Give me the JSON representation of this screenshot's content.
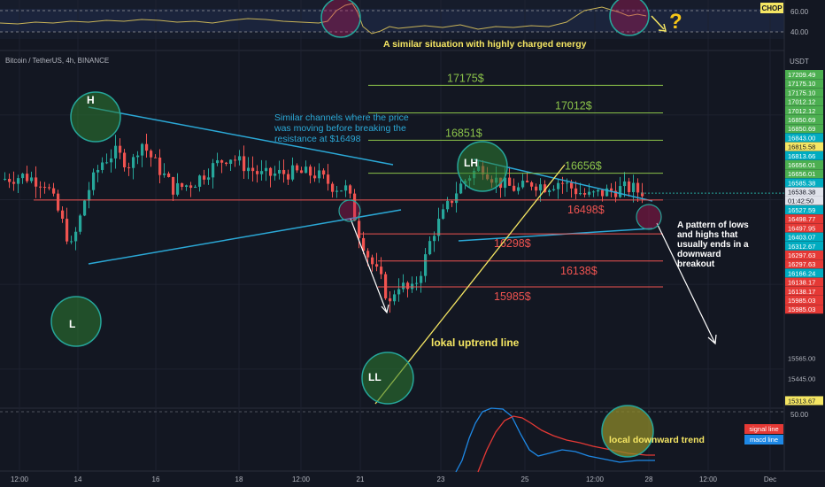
{
  "header": {
    "symbol_title": "Bitcoin / TetherUS, 4h, BINANCE",
    "currency": "USDT"
  },
  "chop_panel": {
    "name": "CHOP",
    "levels": [
      "60.00",
      "40.00"
    ],
    "question_mark": "?",
    "annotation": "A similar situation with highly charged energy"
  },
  "macd_panel": {
    "level": "50.00",
    "legend": [
      {
        "label": "signal line",
        "color": "#e53935"
      },
      {
        "label": "macd line",
        "color": "#1e88e5"
      }
    ],
    "annotation": "local downward trend"
  },
  "pivots": {
    "high": "H",
    "low": "L",
    "lower_high": "LH",
    "lower_low": "LL"
  },
  "annotations": {
    "channels": [
      "Similar channels where the price",
      "was moving before breaking the",
      "resistance at $16498"
    ],
    "pattern": [
      "A pattern of lows",
      "and highs that",
      "usually ends in a",
      "downward",
      "breakout"
    ],
    "uptrend": "lokal uptrend line"
  },
  "levels": {
    "green": [
      {
        "label": "17175$",
        "price": 17175
      },
      {
        "label": "17012$",
        "price": 17012
      },
      {
        "label": "16851$",
        "price": 16851
      },
      {
        "label": "16656$",
        "price": 16656
      }
    ],
    "red": [
      {
        "label": "16498$",
        "price": 16498
      },
      {
        "label": "16298$",
        "price": 16298
      },
      {
        "label": "16138$",
        "price": 16138
      },
      {
        "label": "15985$",
        "price": 15985
      }
    ]
  },
  "colors": {
    "up": "#26a69a",
    "down": "#ef5350",
    "channel": "#2ba8d6",
    "green_level": "#8bc34a",
    "red_level": "#ef5350",
    "uptrend": "#f5e663",
    "annotation": "#f5e663"
  },
  "chart_data": {
    "type": "candlestick",
    "symbol": "Bitcoin / TetherUS",
    "timeframe": "4h",
    "exchange": "BINANCE",
    "ylim": [
      15290,
      17250
    ],
    "x_tick_labels": [
      "12:00",
      "14",
      "16",
      "18",
      "12:00",
      "21",
      "23",
      "25",
      "12:00",
      "28",
      "12:00",
      "Dec"
    ],
    "price_scale_labels": [
      {
        "value": 17209.49,
        "text": "17209.49",
        "style": "green"
      },
      {
        "value": 17175.1,
        "text": "17175.10",
        "style": "green"
      },
      {
        "value": 17175.1,
        "text": "17175.10",
        "style": "green"
      },
      {
        "value": 17012.12,
        "text": "17012.12",
        "style": "green"
      },
      {
        "value": 17012.12,
        "text": "17012.12",
        "style": "green"
      },
      {
        "value": 16850.69,
        "text": "16850.69",
        "style": "green"
      },
      {
        "value": 16850.69,
        "text": "16850.69",
        "style": "green"
      },
      {
        "value": 16843.0,
        "text": "16843.00",
        "style": "cyan"
      },
      {
        "value": 16815.58,
        "text": "16815.58",
        "style": "yellow"
      },
      {
        "value": 16813.66,
        "text": "16813.66",
        "style": "cyan"
      },
      {
        "value": 16656.01,
        "text": "16656.01",
        "style": "green"
      },
      {
        "value": 16656.01,
        "text": "16656.01",
        "style": "green"
      },
      {
        "value": 16585.38,
        "text": "16585.38",
        "style": "cyan"
      },
      {
        "value": 16538.38,
        "text": "16538.38",
        "style": "white"
      },
      {
        "value": 16527.59,
        "text": "16527.59",
        "style": "cyan"
      },
      {
        "value": 16498.77,
        "text": "16498.77",
        "style": "red"
      },
      {
        "value": 16497.95,
        "text": "16497.95",
        "style": "red"
      },
      {
        "value": 16403.07,
        "text": "16403.07",
        "style": "cyan"
      },
      {
        "value": 16312.67,
        "text": "16312.67",
        "style": "cyan"
      },
      {
        "value": 16297.63,
        "text": "16297.63",
        "style": "red"
      },
      {
        "value": 16297.63,
        "text": "16297.63",
        "style": "red"
      },
      {
        "value": 16166.24,
        "text": "16166.24",
        "style": "cyan"
      },
      {
        "value": 16138.17,
        "text": "16138.17",
        "style": "red"
      },
      {
        "value": 16138.17,
        "text": "16138.17",
        "style": "red"
      },
      {
        "value": 15985.03,
        "text": "15985.03",
        "style": "red"
      },
      {
        "value": 15985.03,
        "text": "15985.03",
        "style": "red"
      },
      {
        "value": 15565.0,
        "text": "15565.00",
        "style": "plain"
      },
      {
        "value": 15445.0,
        "text": "15445.00",
        "style": "plain"
      },
      {
        "value": 15313.67,
        "text": "15313.67",
        "style": "yellow"
      }
    ],
    "current_price": {
      "value": 16538.38,
      "text": "16538.38",
      "countdown": "01:42:50"
    }
  }
}
